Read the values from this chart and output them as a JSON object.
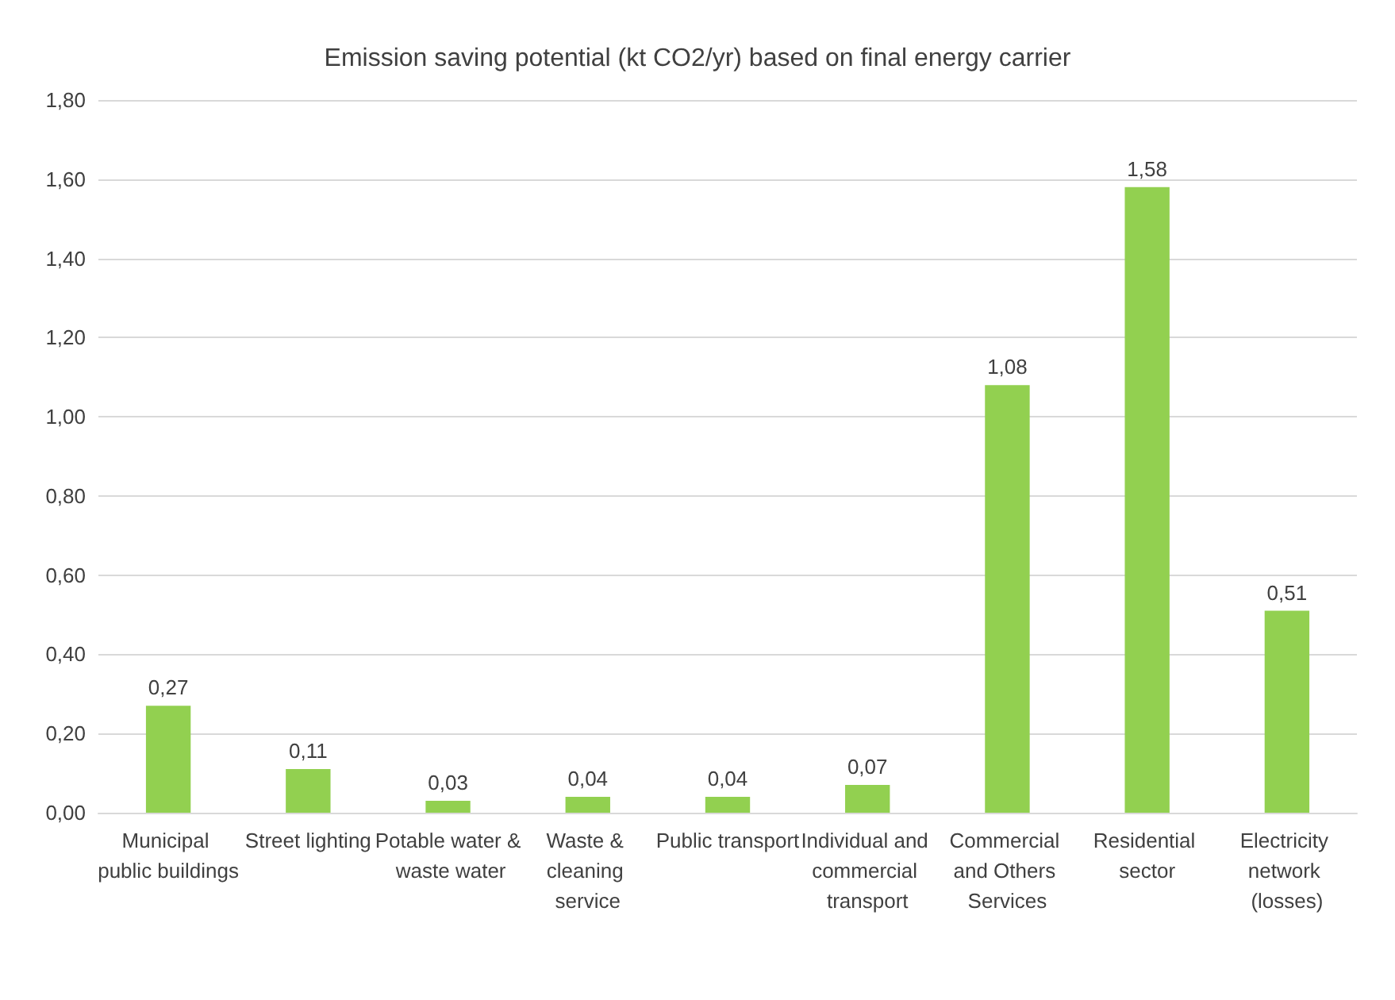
{
  "chart_data": {
    "type": "bar",
    "title": "Emission saving potential (kt CO2/yr) based on final energy carrier",
    "categories": [
      "Municipal public buildings",
      "Street lighting",
      "Potable water & waste water",
      "Waste & cleaning service",
      "Public transport",
      "Individual and commercial transport",
      "Commercial and Others Services",
      "Residential sector",
      "Electricity network (losses)"
    ],
    "values": [
      0.27,
      0.11,
      0.03,
      0.04,
      0.04,
      0.07,
      1.08,
      1.58,
      0.51
    ],
    "value_labels": [
      "0,27",
      "0,11",
      "0,03",
      "0,04",
      "0,04",
      "0,07",
      "1,08",
      "1,58",
      "0,51"
    ],
    "color": "#92d050",
    "ylim": [
      0,
      1.8
    ],
    "yticks": [
      {
        "value": 0,
        "label": "0,00"
      },
      {
        "value": 0.2,
        "label": "0,20"
      },
      {
        "value": 0.4,
        "label": "0,40"
      },
      {
        "value": 0.6,
        "label": "0,60"
      },
      {
        "value": 0.8,
        "label": "0,80"
      },
      {
        "value": 1,
        "label": "1,00"
      },
      {
        "value": 1.2,
        "label": "1,20"
      },
      {
        "value": 1.4,
        "label": "1,40"
      },
      {
        "value": 1.6,
        "label": "1,60"
      },
      {
        "value": 1.8,
        "label": "1,80"
      }
    ],
    "grid": "y"
  }
}
